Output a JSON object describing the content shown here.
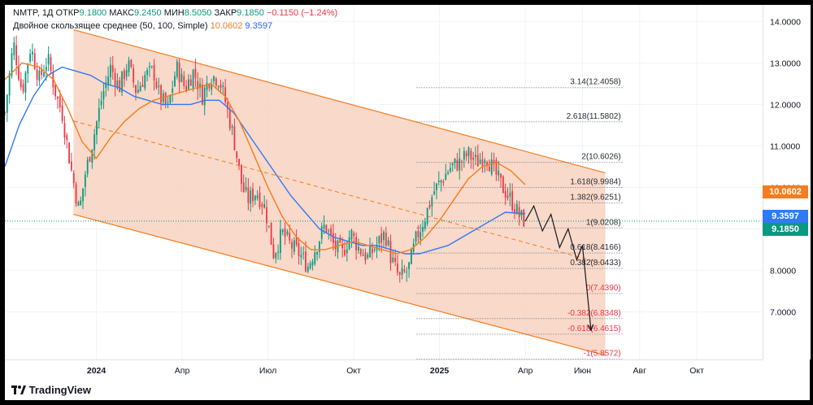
{
  "legend": {
    "symbol": "NMTP, 1Д",
    "open_label": "ОТКР",
    "open": "9.1800",
    "high_label": "МАКС",
    "high": "9.2450",
    "low_label": "МИН",
    "low": "8.5050",
    "close_label": "ЗАКР",
    "close": "9.1850",
    "change": "−0.1150 (−1.24%)",
    "indicator": "Двойное скользящее среднее (50, 100, Simple)",
    "ma_fast": "10.0602",
    "ma_slow": "9.3597"
  },
  "price_tags": {
    "ma_fast": "10.0602",
    "ma_slow": "9.3597",
    "last": "9.1850"
  },
  "colors": {
    "up": "#089981",
    "down": "#f23645",
    "ma_fast": "#f57c1f",
    "ma_slow": "#3179f5",
    "channel_fill": "#f8d2bf",
    "channel_line": "#f57c1f",
    "fib_line": "#6a7080"
  },
  "footer": {
    "brand": "TradingView"
  },
  "chart_data": {
    "type": "candlestick",
    "title": "NMTP, 1Д",
    "ylim": [
      5.85,
      14.4
    ],
    "y_ticks": [
      7.0,
      8.0,
      9.0,
      10.0,
      11.0,
      12.0,
      13.0,
      14.0
    ],
    "y_tick_labels": [
      "7.0000",
      "8.0000",
      "9.0000",
      "10.0000",
      "11.0000",
      "12.0000",
      "13.0000",
      "14.0000"
    ],
    "x_tick_labels": [
      "2024",
      "Апр",
      "Июл",
      "Окт",
      "2025",
      "Апр",
      "Июн",
      "Авг",
      "Окт"
    ],
    "x_tick_months": [
      0,
      3,
      6,
      9,
      12,
      15,
      17,
      19,
      21
    ],
    "x_start_month": -3.2,
    "x_end_month": 23.3,
    "last_price": 9.185,
    "ma_fast_last": 10.0602,
    "ma_slow_last": 9.3597,
    "price_path": [
      [
        -3.2,
        11.8
      ],
      [
        -2.9,
        13.5
      ],
      [
        -2.6,
        12.3
      ],
      [
        -2.3,
        13.4
      ],
      [
        -2.0,
        12.6
      ],
      [
        -1.7,
        13.1
      ],
      [
        -1.4,
        12.2
      ],
      [
        -1.2,
        11.8
      ],
      [
        -0.9,
        10.5
      ],
      [
        -0.6,
        9.4
      ],
      [
        -0.4,
        10.3
      ],
      [
        -0.1,
        11.2
      ],
      [
        0.2,
        12.2
      ],
      [
        0.5,
        12.9
      ],
      [
        0.8,
        12.4
      ],
      [
        1.1,
        13.0
      ],
      [
        1.4,
        12.3
      ],
      [
        1.7,
        12.7
      ],
      [
        2.0,
        12.8
      ],
      [
        2.2,
        12.2
      ],
      [
        2.5,
        11.9
      ],
      [
        2.8,
        12.9
      ],
      [
        3.1,
        12.4
      ],
      [
        3.4,
        12.8
      ],
      [
        3.7,
        12.2
      ],
      [
        4.0,
        12.7
      ],
      [
        4.3,
        12.6
      ],
      [
        4.5,
        12.1
      ],
      [
        4.8,
        11.2
      ],
      [
        5.1,
        10.0
      ],
      [
        5.3,
        9.7
      ],
      [
        5.6,
        9.9
      ],
      [
        5.9,
        9.5
      ],
      [
        6.2,
        8.4
      ],
      [
        6.5,
        8.9
      ],
      [
        6.8,
        8.6
      ],
      [
        7.1,
        8.4
      ],
      [
        7.4,
        8.1
      ],
      [
        7.7,
        8.6
      ],
      [
        8.0,
        9.1
      ],
      [
        8.3,
        8.6
      ],
      [
        8.6,
        8.4
      ],
      [
        8.9,
        8.9
      ],
      [
        9.2,
        8.5
      ],
      [
        9.5,
        8.3
      ],
      [
        9.8,
        8.6
      ],
      [
        10.1,
        8.9
      ],
      [
        10.3,
        8.3
      ],
      [
        10.6,
        7.8
      ],
      [
        10.9,
        8.0
      ],
      [
        11.2,
        8.8
      ],
      [
        11.5,
        9.3
      ],
      [
        11.8,
        9.9
      ],
      [
        12.1,
        10.2
      ],
      [
        12.4,
        10.5
      ],
      [
        12.7,
        10.6
      ],
      [
        13.0,
        10.8
      ],
      [
        13.3,
        10.6
      ],
      [
        13.6,
        10.8
      ],
      [
        13.9,
        10.4
      ],
      [
        14.2,
        10.0
      ],
      [
        14.5,
        9.7
      ],
      [
        14.8,
        9.3
      ],
      [
        15.0,
        9.185
      ]
    ],
    "ma_fast_path": [
      [
        -3.2,
        12.6
      ],
      [
        -2.6,
        13.0
      ],
      [
        -2.0,
        12.9
      ],
      [
        -1.5,
        12.6
      ],
      [
        -1.0,
        11.9
      ],
      [
        -0.5,
        11.1
      ],
      [
        0.0,
        10.7
      ],
      [
        0.5,
        11.2
      ],
      [
        1.0,
        11.6
      ],
      [
        1.5,
        11.9
      ],
      [
        2.0,
        12.1
      ],
      [
        2.5,
        12.2
      ],
      [
        3.0,
        12.3
      ],
      [
        3.5,
        12.4
      ],
      [
        4.0,
        12.5
      ],
      [
        4.5,
        12.2
      ],
      [
        5.0,
        11.6
      ],
      [
        5.5,
        10.8
      ],
      [
        6.0,
        10.0
      ],
      [
        6.5,
        9.3
      ],
      [
        7.0,
        8.8
      ],
      [
        7.5,
        8.5
      ],
      [
        8.0,
        8.5
      ],
      [
        8.5,
        8.6
      ],
      [
        9.0,
        8.7
      ],
      [
        9.5,
        8.6
      ],
      [
        10.0,
        8.5
      ],
      [
        10.5,
        8.4
      ],
      [
        11.0,
        8.5
      ],
      [
        11.5,
        8.8
      ],
      [
        12.0,
        9.2
      ],
      [
        12.5,
        9.7
      ],
      [
        13.0,
        10.2
      ],
      [
        13.5,
        10.5
      ],
      [
        14.0,
        10.6
      ],
      [
        14.5,
        10.4
      ],
      [
        15.0,
        10.06
      ]
    ],
    "ma_slow_path": [
      [
        -3.2,
        10.5
      ],
      [
        -2.7,
        11.5
      ],
      [
        -2.2,
        12.2
      ],
      [
        -1.7,
        12.7
      ],
      [
        -1.2,
        12.9
      ],
      [
        -0.7,
        12.8
      ],
      [
        -0.2,
        12.7
      ],
      [
        0.3,
        12.5
      ],
      [
        0.8,
        12.4
      ],
      [
        1.3,
        12.2
      ],
      [
        1.8,
        12.1
      ],
      [
        2.3,
        12.0
      ],
      [
        2.8,
        12.0
      ],
      [
        3.3,
        12.0
      ],
      [
        3.8,
        12.1
      ],
      [
        4.3,
        12.1
      ],
      [
        4.8,
        11.8
      ],
      [
        5.3,
        11.3
      ],
      [
        5.8,
        10.8
      ],
      [
        6.3,
        10.3
      ],
      [
        6.8,
        9.8
      ],
      [
        7.3,
        9.4
      ],
      [
        7.8,
        9.0
      ],
      [
        8.3,
        8.8
      ],
      [
        8.8,
        8.7
      ],
      [
        9.3,
        8.6
      ],
      [
        9.8,
        8.6
      ],
      [
        10.3,
        8.5
      ],
      [
        10.8,
        8.4
      ],
      [
        11.3,
        8.4
      ],
      [
        11.8,
        8.5
      ],
      [
        12.3,
        8.6
      ],
      [
        12.8,
        8.8
      ],
      [
        13.3,
        9.0
      ],
      [
        13.8,
        9.2
      ],
      [
        14.3,
        9.4
      ],
      [
        15.0,
        9.36
      ]
    ],
    "channel": {
      "upper": [
        [
          -0.8,
          13.8
        ],
        [
          17.8,
          10.35
        ]
      ],
      "lower": [
        [
          -0.8,
          9.35
        ],
        [
          17.8,
          5.95
        ]
      ],
      "midline": [
        [
          -0.8,
          11.6
        ],
        [
          17.8,
          8.15
        ]
      ]
    },
    "projection_path": [
      [
        15.0,
        9.185
      ],
      [
        15.3,
        9.55
      ],
      [
        15.6,
        8.95
      ],
      [
        15.9,
        9.35
      ],
      [
        16.2,
        8.55
      ],
      [
        16.5,
        9.0
      ],
      [
        16.8,
        8.25
      ],
      [
        17.0,
        8.6
      ],
      [
        17.3,
        6.55
      ]
    ],
    "fib_levels": [
      {
        "ratio": "3.14",
        "value": 12.4058,
        "label": "3.14(12.4058)"
      },
      {
        "ratio": "2.618",
        "value": 11.5802,
        "label": "2.618(11.5802)"
      },
      {
        "ratio": "2",
        "value": 10.6026,
        "label": "2(10.6026)"
      },
      {
        "ratio": "1.618",
        "value": 9.9984,
        "label": "1.618(9.9984)"
      },
      {
        "ratio": "1.382",
        "value": 9.6251,
        "label": "1.382(9.6251)"
      },
      {
        "ratio": "1",
        "value": 9.0208,
        "label": "1(9.0208)"
      },
      {
        "ratio": "0.618",
        "value": 8.4166,
        "label": "0.618(8.4166)"
      },
      {
        "ratio": "0.382",
        "value": 8.0433,
        "label": "0.382(8.0433)"
      },
      {
        "ratio": "0",
        "value": 7.439,
        "label": "0(7.4390)"
      },
      {
        "ratio": "-0.382",
        "value": 6.8348,
        "label": "-0.382(6.8348)"
      },
      {
        "ratio": "-0.618",
        "value": 6.4615,
        "label": "-0.618(6.4615)"
      },
      {
        "ratio": "-1",
        "value": 5.8572,
        "label": "-1(5.8572)"
      }
    ]
  }
}
